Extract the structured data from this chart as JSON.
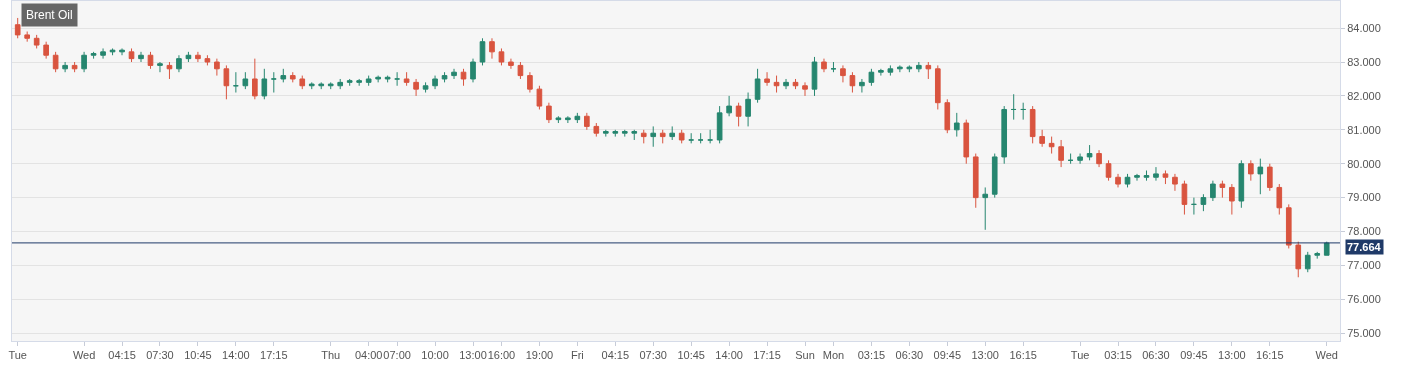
{
  "chart_data": {
    "type": "candlestick",
    "title": "Brent Oil",
    "categories": [
      "Tue",
      null,
      null,
      null,
      null,
      null,
      null,
      "Wed",
      null,
      null,
      null,
      "04:15",
      null,
      null,
      null,
      "07:30",
      null,
      null,
      null,
      "10:45",
      null,
      null,
      null,
      "14:00",
      null,
      null,
      null,
      "17:15",
      null,
      null,
      null,
      null,
      null,
      "Thu",
      null,
      null,
      null,
      "04:00",
      null,
      null,
      "07:00",
      null,
      null,
      null,
      "10:00",
      null,
      null,
      null,
      "13:00",
      null,
      null,
      "16:00",
      null,
      null,
      null,
      "19:00",
      null,
      null,
      null,
      "Fri",
      null,
      null,
      null,
      "04:15",
      null,
      null,
      null,
      "07:30",
      null,
      null,
      null,
      "10:45",
      null,
      null,
      null,
      "14:00",
      null,
      null,
      null,
      "17:15",
      null,
      null,
      null,
      "Sun",
      null,
      null,
      "Mon",
      null,
      null,
      null,
      "03:15",
      null,
      null,
      null,
      "06:30",
      null,
      null,
      null,
      "09:45",
      null,
      null,
      null,
      "13:00",
      null,
      null,
      null,
      "16:15",
      null,
      null,
      null,
      null,
      null,
      "Tue",
      null,
      null,
      null,
      "03:15",
      null,
      null,
      null,
      "06:30",
      null,
      null,
      null,
      "09:45",
      null,
      null,
      null,
      "13:00",
      null,
      null,
      null,
      "16:15",
      null,
      null,
      null,
      null,
      null,
      "Wed"
    ],
    "ohlc": [
      [
        84.1,
        84.3,
        83.7,
        83.8
      ],
      [
        83.8,
        83.9,
        83.6,
        83.7
      ],
      [
        83.7,
        83.8,
        83.4,
        83.5
      ],
      [
        83.5,
        83.6,
        83.1,
        83.2
      ],
      [
        83.2,
        83.3,
        82.7,
        82.8
      ],
      [
        82.8,
        83.0,
        82.7,
        82.9
      ],
      [
        82.9,
        83.0,
        82.7,
        82.8
      ],
      [
        82.8,
        83.3,
        82.7,
        83.2
      ],
      [
        83.2,
        83.3,
        83.1,
        83.25
      ],
      [
        83.2,
        83.4,
        83.1,
        83.3
      ],
      [
        83.3,
        83.4,
        83.2,
        83.35
      ],
      [
        83.3,
        83.4,
        83.2,
        83.35
      ],
      [
        83.3,
        83.4,
        83.0,
        83.1
      ],
      [
        83.1,
        83.3,
        83.0,
        83.2
      ],
      [
        83.2,
        83.3,
        82.8,
        82.9
      ],
      [
        82.9,
        83.0,
        82.7,
        82.95
      ],
      [
        82.9,
        83.0,
        82.5,
        82.8
      ],
      [
        82.8,
        83.2,
        82.7,
        83.1
      ],
      [
        83.1,
        83.3,
        83.0,
        83.2
      ],
      [
        83.2,
        83.3,
        83.0,
        83.1
      ],
      [
        83.1,
        83.2,
        82.9,
        83.0
      ],
      [
        83.0,
        83.1,
        82.6,
        82.8
      ],
      [
        82.8,
        82.9,
        81.9,
        82.3
      ],
      [
        82.3,
        82.7,
        82.1,
        82.3
      ],
      [
        82.3,
        82.7,
        82.2,
        82.5
      ],
      [
        82.5,
        83.1,
        81.9,
        82.0
      ],
      [
        82.0,
        82.8,
        81.9,
        82.5
      ],
      [
        82.5,
        82.7,
        82.1,
        82.5
      ],
      [
        82.5,
        82.8,
        82.4,
        82.6
      ],
      [
        82.6,
        82.7,
        82.4,
        82.5
      ],
      [
        82.5,
        82.6,
        82.2,
        82.3
      ],
      [
        82.3,
        82.4,
        82.2,
        82.35
      ],
      [
        82.3,
        82.4,
        82.2,
        82.35
      ],
      [
        82.3,
        82.4,
        82.2,
        82.35
      ],
      [
        82.3,
        82.5,
        82.2,
        82.4
      ],
      [
        82.4,
        82.5,
        82.3,
        82.45
      ],
      [
        82.4,
        82.5,
        82.3,
        82.45
      ],
      [
        82.4,
        82.6,
        82.3,
        82.5
      ],
      [
        82.5,
        82.6,
        82.4,
        82.55
      ],
      [
        82.5,
        82.6,
        82.4,
        82.55
      ],
      [
        82.5,
        82.7,
        82.3,
        82.5
      ],
      [
        82.5,
        82.7,
        82.3,
        82.4
      ],
      [
        82.4,
        82.5,
        82.0,
        82.2
      ],
      [
        82.2,
        82.4,
        82.1,
        82.3
      ],
      [
        82.3,
        82.6,
        82.2,
        82.5
      ],
      [
        82.5,
        82.7,
        82.4,
        82.6
      ],
      [
        82.6,
        82.8,
        82.5,
        82.7
      ],
      [
        82.7,
        82.8,
        82.3,
        82.5
      ],
      [
        82.5,
        83.1,
        82.4,
        83.0
      ],
      [
        83.0,
        83.7,
        82.9,
        83.6
      ],
      [
        83.6,
        83.7,
        83.1,
        83.3
      ],
      [
        83.3,
        83.4,
        82.9,
        83.0
      ],
      [
        83.0,
        83.1,
        82.8,
        82.9
      ],
      [
        82.9,
        83.0,
        82.5,
        82.6
      ],
      [
        82.6,
        82.7,
        82.1,
        82.2
      ],
      [
        82.2,
        82.3,
        81.6,
        81.7
      ],
      [
        81.7,
        81.8,
        81.2,
        81.3
      ],
      [
        81.3,
        81.4,
        81.2,
        81.35
      ],
      [
        81.3,
        81.4,
        81.2,
        81.35
      ],
      [
        81.3,
        81.5,
        81.2,
        81.4
      ],
      [
        81.4,
        81.5,
        81.0,
        81.1
      ],
      [
        81.1,
        81.2,
        80.8,
        80.9
      ],
      [
        80.9,
        81.0,
        80.8,
        80.95
      ],
      [
        80.9,
        81.0,
        80.8,
        80.95
      ],
      [
        80.9,
        81.0,
        80.8,
        80.95
      ],
      [
        80.9,
        81.0,
        80.7,
        80.95
      ],
      [
        80.9,
        81.0,
        80.6,
        80.8
      ],
      [
        80.8,
        81.1,
        80.5,
        80.9
      ],
      [
        80.9,
        81.0,
        80.6,
        80.8
      ],
      [
        80.8,
        81.1,
        80.7,
        80.9
      ],
      [
        80.9,
        81.0,
        80.6,
        80.7
      ],
      [
        80.7,
        80.9,
        80.6,
        80.7
      ],
      [
        80.7,
        80.9,
        80.6,
        80.7
      ],
      [
        80.7,
        81.0,
        80.6,
        80.7
      ],
      [
        80.7,
        81.7,
        80.6,
        81.5
      ],
      [
        81.5,
        82.0,
        81.4,
        81.7
      ],
      [
        81.7,
        81.8,
        81.1,
        81.4
      ],
      [
        81.4,
        82.1,
        81.1,
        81.9
      ],
      [
        81.9,
        82.8,
        81.8,
        82.5
      ],
      [
        82.5,
        82.7,
        82.3,
        82.4
      ],
      [
        82.4,
        82.6,
        82.1,
        82.3
      ],
      [
        82.3,
        82.5,
        82.2,
        82.4
      ],
      [
        82.4,
        82.5,
        82.2,
        82.3
      ],
      [
        82.3,
        82.4,
        82.0,
        82.2
      ],
      [
        82.2,
        83.15,
        82.0,
        83.0
      ],
      [
        83.0,
        83.1,
        82.7,
        82.8
      ],
      [
        82.8,
        83.0,
        82.7,
        82.8
      ],
      [
        82.8,
        82.9,
        82.4,
        82.6
      ],
      [
        82.6,
        82.7,
        82.1,
        82.3
      ],
      [
        82.3,
        82.5,
        82.1,
        82.4
      ],
      [
        82.4,
        82.8,
        82.3,
        82.7
      ],
      [
        82.7,
        82.8,
        82.6,
        82.75
      ],
      [
        82.7,
        82.9,
        82.6,
        82.8
      ],
      [
        82.8,
        82.9,
        82.7,
        82.85
      ],
      [
        82.8,
        82.9,
        82.7,
        82.85
      ],
      [
        82.8,
        83.0,
        82.7,
        82.9
      ],
      [
        82.9,
        83.0,
        82.5,
        82.8
      ],
      [
        82.8,
        82.9,
        81.6,
        81.8
      ],
      [
        81.8,
        81.9,
        80.9,
        81.0
      ],
      [
        81.0,
        81.5,
        80.8,
        81.2
      ],
      [
        81.2,
        81.3,
        80.0,
        80.2
      ],
      [
        80.2,
        80.3,
        78.7,
        79.0
      ],
      [
        79.0,
        79.3,
        78.05,
        79.1
      ],
      [
        79.1,
        80.3,
        79.0,
        80.2
      ],
      [
        80.2,
        81.7,
        80.0,
        81.6
      ],
      [
        81.6,
        82.05,
        81.3,
        81.6
      ],
      [
        81.6,
        81.8,
        81.3,
        81.6
      ],
      [
        81.6,
        81.7,
        80.6,
        80.8
      ],
      [
        80.8,
        81.0,
        80.5,
        80.6
      ],
      [
        80.6,
        80.8,
        80.3,
        80.5
      ],
      [
        80.5,
        80.7,
        79.9,
        80.1
      ],
      [
        80.1,
        80.3,
        80.0,
        80.1
      ],
      [
        80.1,
        80.3,
        80.0,
        80.2
      ],
      [
        80.2,
        80.55,
        80.1,
        80.3
      ],
      [
        80.3,
        80.4,
        79.9,
        80.0
      ],
      [
        80.0,
        80.1,
        79.5,
        79.6
      ],
      [
        79.6,
        79.7,
        79.3,
        79.4
      ],
      [
        79.4,
        79.7,
        79.3,
        79.6
      ],
      [
        79.6,
        79.7,
        79.5,
        79.65
      ],
      [
        79.6,
        79.8,
        79.5,
        79.65
      ],
      [
        79.6,
        79.9,
        79.5,
        79.7
      ],
      [
        79.7,
        79.8,
        79.4,
        79.6
      ],
      [
        79.6,
        79.7,
        79.2,
        79.4
      ],
      [
        79.4,
        79.5,
        78.5,
        78.8
      ],
      [
        78.8,
        79.0,
        78.5,
        78.8
      ],
      [
        78.8,
        79.1,
        78.6,
        79.0
      ],
      [
        79.0,
        79.5,
        78.9,
        79.4
      ],
      [
        79.4,
        79.5,
        79.0,
        79.3
      ],
      [
        79.3,
        79.4,
        78.5,
        78.9
      ],
      [
        78.9,
        80.1,
        78.7,
        80.0
      ],
      [
        80.0,
        80.1,
        79.5,
        79.7
      ],
      [
        79.7,
        80.15,
        79.1,
        79.9
      ],
      [
        79.9,
        80.0,
        79.2,
        79.3
      ],
      [
        79.3,
        79.4,
        78.5,
        78.7
      ],
      [
        78.7,
        78.8,
        77.5,
        77.6
      ],
      [
        77.6,
        77.7,
        76.65,
        76.9
      ],
      [
        76.9,
        77.4,
        76.8,
        77.3
      ],
      [
        77.3,
        77.4,
        77.2,
        77.35
      ],
      [
        77.3,
        77.7,
        77.3,
        77.66
      ]
    ],
    "colors": [
      "#d9543f",
      "#d9543f",
      "#d9543f",
      "#d9543f",
      "#d9543f",
      "#26866f",
      "#d9543f",
      "#26866f",
      "#26866f",
      "#26866f",
      "#26866f",
      "#26866f",
      "#d9543f",
      "#26866f",
      "#d9543f",
      "#26866f",
      "#d9543f",
      "#26866f",
      "#26866f",
      "#d9543f",
      "#d9543f",
      "#d9543f",
      "#d9543f",
      "#26866f",
      "#26866f",
      "#d9543f",
      "#26866f",
      "#26866f",
      "#26866f",
      "#d9543f",
      "#d9543f",
      "#26866f",
      "#26866f",
      "#26866f",
      "#26866f",
      "#26866f",
      "#26866f",
      "#26866f",
      "#26866f",
      "#26866f",
      "#26866f",
      "#d9543f",
      "#d9543f",
      "#26866f",
      "#26866f",
      "#26866f",
      "#26866f",
      "#d9543f",
      "#26866f",
      "#26866f",
      "#d9543f",
      "#d9543f",
      "#d9543f",
      "#d9543f",
      "#d9543f",
      "#d9543f",
      "#d9543f",
      "#26866f",
      "#26866f",
      "#26866f",
      "#d9543f",
      "#d9543f",
      "#26866f",
      "#26866f",
      "#26866f",
      "#26866f",
      "#d9543f",
      "#26866f",
      "#d9543f",
      "#26866f",
      "#d9543f",
      "#26866f",
      "#26866f",
      "#26866f",
      "#26866f",
      "#26866f",
      "#d9543f",
      "#26866f",
      "#26866f",
      "#d9543f",
      "#d9543f",
      "#26866f",
      "#d9543f",
      "#d9543f",
      "#26866f",
      "#d9543f",
      "#26866f",
      "#d9543f",
      "#d9543f",
      "#26866f",
      "#26866f",
      "#26866f",
      "#26866f",
      "#26866f",
      "#26866f",
      "#26866f",
      "#d9543f",
      "#d9543f",
      "#d9543f",
      "#26866f",
      "#d9543f",
      "#d9543f",
      "#26866f",
      "#26866f",
      "#26866f",
      "#26866f",
      "#26866f",
      "#d9543f",
      "#d9543f",
      "#d9543f",
      "#d9543f",
      "#26866f",
      "#26866f",
      "#26866f",
      "#d9543f",
      "#d9543f",
      "#d9543f",
      "#26866f",
      "#26866f",
      "#26866f",
      "#26866f",
      "#d9543f",
      "#d9543f",
      "#d9543f",
      "#26866f",
      "#26866f",
      "#26866f",
      "#d9543f",
      "#d9543f",
      "#26866f",
      "#d9543f",
      "#26866f",
      "#d9543f",
      "#d9543f",
      "#d9543f",
      "#d9543f",
      "#26866f",
      "#26866f",
      "#26866f"
    ],
    "ylim": [
      74.77,
      84.8
    ],
    "yticks": [
      {
        "value": 75,
        "label": "75.000"
      },
      {
        "value": 76,
        "label": "76.000"
      },
      {
        "value": 77,
        "label": "77.000"
      },
      {
        "value": 78,
        "label": "78.000"
      },
      {
        "value": 79,
        "label": "79.000"
      },
      {
        "value": 80,
        "label": "80.000"
      },
      {
        "value": 81,
        "label": "81.000"
      },
      {
        "value": 82,
        "label": "82.000"
      },
      {
        "value": 83,
        "label": "83.000"
      },
      {
        "value": 84,
        "label": "84.000"
      }
    ],
    "grid": "y",
    "ref_lines": [
      {
        "axis": "y",
        "value": 77.664,
        "label": "77.664",
        "color": "#1f3a68"
      }
    ]
  }
}
